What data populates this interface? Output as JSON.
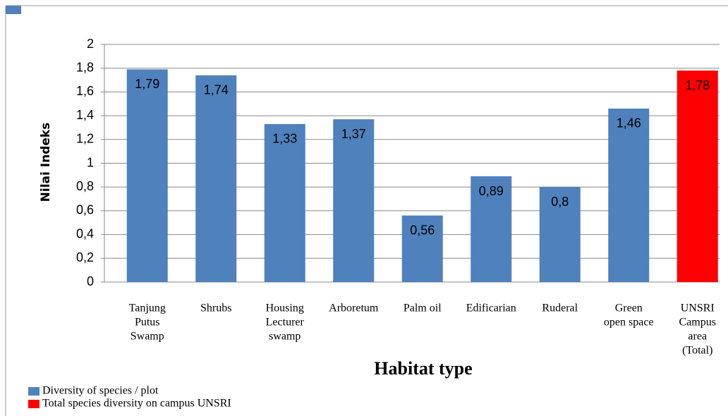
{
  "chart_data": {
    "type": "bar",
    "categories": [
      [
        "Tanjung",
        "Putus",
        "Swamp"
      ],
      [
        "Shrubs"
      ],
      [
        "Housing",
        "Lecturer",
        "swamp"
      ],
      [
        "Arboretum"
      ],
      [
        "Palm oil"
      ],
      [
        "Edificarian"
      ],
      [
        "Ruderal"
      ],
      [
        "Green",
        "open space"
      ],
      [
        "UNSRI",
        "Campus",
        "area",
        "(Total)"
      ]
    ],
    "values": [
      1.79,
      1.74,
      1.33,
      1.37,
      0.56,
      0.89,
      0.8,
      1.46,
      1.78
    ],
    "value_labels": [
      "1,79",
      "1,74",
      "1,33",
      "1,37",
      "0,56",
      "0,89",
      "0,8",
      "1,46",
      "1,78"
    ],
    "colors": [
      "#4f81bd",
      "#4f81bd",
      "#4f81bd",
      "#4f81bd",
      "#4f81bd",
      "#4f81bd",
      "#4f81bd",
      "#4f81bd",
      "#ff0000"
    ],
    "legend": [
      {
        "name": "Diversity of species / plot",
        "color": "#4f81bd"
      },
      {
        "name": "Total species diversity on campus UNSRI",
        "color": "#ff0000"
      }
    ],
    "xlabel": "Habitat  type",
    "ylabel": "Nilai Indeks",
    "ylim": [
      0,
      2
    ],
    "yticks": [
      0,
      {
        "value": 0.2,
        "label": "0,2"
      },
      {
        "value": 0.4,
        "label": "0,4"
      },
      {
        "value": 0.6,
        "label": "0,6"
      },
      {
        "value": 0.8,
        "label": "0,8"
      },
      1,
      {
        "value": 1.2,
        "label": "1,2"
      },
      {
        "value": 1.4,
        "label": "1,4"
      },
      {
        "value": 1.6,
        "label": "1,6"
      },
      {
        "value": 1.8,
        "label": "1,8"
      },
      2
    ],
    "grid": true
  }
}
